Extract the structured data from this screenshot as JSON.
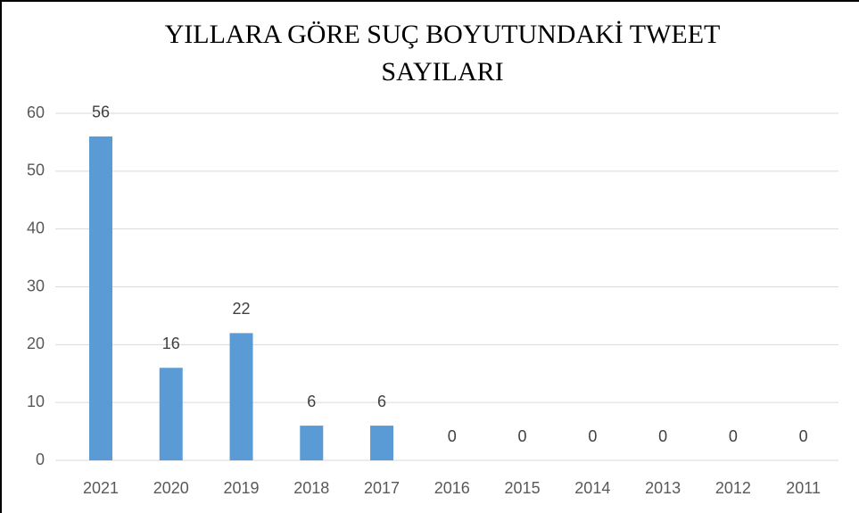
{
  "chart_data": {
    "type": "bar",
    "title": "YILLARA GÖRE SUÇ BOYUTUNDAKİ TWEET SAYILARI",
    "categories": [
      "2021",
      "2020",
      "2019",
      "2018",
      "2017",
      "2016",
      "2015",
      "2014",
      "2013",
      "2012",
      "2011"
    ],
    "values": [
      56,
      16,
      22,
      6,
      6,
      0,
      0,
      0,
      0,
      0,
      0
    ],
    "color": "#5b9bd5",
    "ylim": [
      0,
      60
    ],
    "yticks": [
      0,
      10,
      20,
      30,
      40,
      50,
      60
    ],
    "grid": true,
    "data_labels": true
  }
}
